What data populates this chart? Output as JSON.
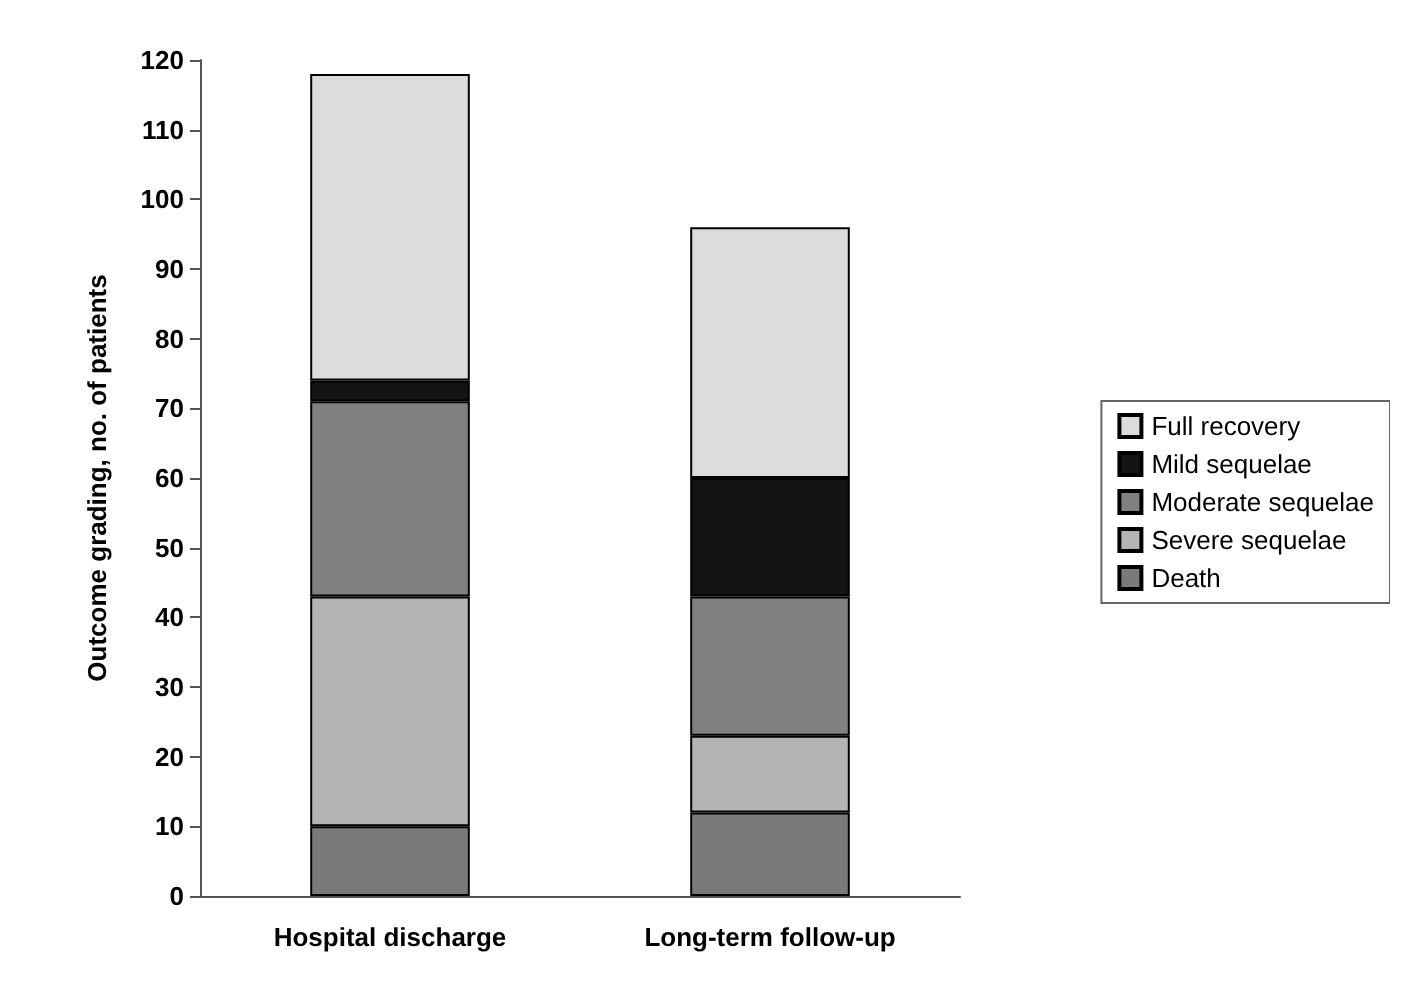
{
  "chart_data": {
    "type": "bar",
    "stacked": true,
    "ylabel": "Outcome grading, no. of patients",
    "categories": [
      "Hospital discharge",
      "Long-term follow-up"
    ],
    "series": [
      {
        "name": "Death",
        "color": "#7a7a7a",
        "values": [
          10,
          12
        ]
      },
      {
        "name": "Severe sequelae",
        "color": "#b4b4b4",
        "values": [
          33,
          11
        ]
      },
      {
        "name": "Moderate sequelae",
        "color": "#808080",
        "values": [
          28,
          20
        ]
      },
      {
        "name": "Mild sequelae",
        "color": "#141414",
        "values": [
          3,
          17
        ]
      },
      {
        "name": "Full recovery",
        "color": "#dcdcdc",
        "values": [
          44,
          36
        ]
      }
    ],
    "ylim": [
      0,
      120
    ],
    "yticks": [
      0,
      10,
      20,
      30,
      40,
      50,
      60,
      70,
      80,
      90,
      100,
      110,
      120
    ],
    "grid": false,
    "legend": "right"
  }
}
